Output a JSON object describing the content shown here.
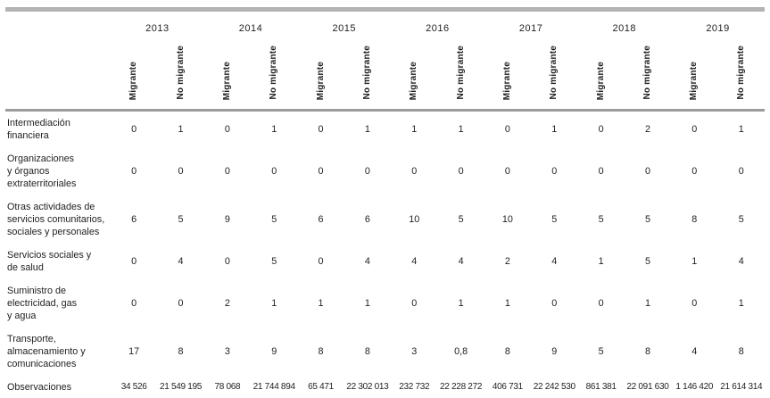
{
  "colors": {
    "thick_border": "#b4b2b2",
    "header_rule": "#9c9c9c",
    "text": "#1f1f1f"
  },
  "table": {
    "years": [
      "2013",
      "2014",
      "2015",
      "2016",
      "2017",
      "2018",
      "2019"
    ],
    "subheaders": [
      "Migrante",
      "No migrante"
    ],
    "rows": [
      {
        "label": "Intermediación\nfinanciera",
        "values": [
          "0",
          "1",
          "0",
          "1",
          "0",
          "1",
          "1",
          "1",
          "0",
          "1",
          "0",
          "2",
          "0",
          "1"
        ]
      },
      {
        "label": "Organizaciones\ny órganos\nextraterritoriales",
        "values": [
          "0",
          "0",
          "0",
          "0",
          "0",
          "0",
          "0",
          "0",
          "0",
          "0",
          "0",
          "0",
          "0",
          "0"
        ]
      },
      {
        "label": "Otras actividades de\nservicios comunitarios,\nsociales y personales",
        "values": [
          "6",
          "5",
          "9",
          "5",
          "6",
          "6",
          "10",
          "5",
          "10",
          "5",
          "5",
          "5",
          "8",
          "5"
        ]
      },
      {
        "label": "Servicios sociales y\nde salud",
        "values": [
          "0",
          "4",
          "0",
          "5",
          "0",
          "4",
          "4",
          "4",
          "2",
          "4",
          "1",
          "5",
          "1",
          "4"
        ]
      },
      {
        "label": "Suministro de\nelectricidad, gas\ny agua",
        "values": [
          "0",
          "0",
          "2",
          "1",
          "1",
          "1",
          "0",
          "1",
          "1",
          "0",
          "0",
          "1",
          "0",
          "1"
        ]
      },
      {
        "label": "Transporte,\nalmacenamiento y\ncomunicaciones",
        "values": [
          "17",
          "8",
          "3",
          "9",
          "8",
          "8",
          "3",
          "0,8",
          "8",
          "9",
          "5",
          "8",
          "4",
          "8"
        ]
      }
    ],
    "footer": {
      "label": "Observaciones",
      "values": [
        "34 526",
        "21 549 195",
        "78 068",
        "21 744 894",
        "65 471",
        "22 302 013",
        "232 732",
        "22 228 272",
        "406 731",
        "22 242 530",
        "861 381",
        "22 091 630",
        "1 146 420",
        "21 614 314"
      ]
    }
  }
}
